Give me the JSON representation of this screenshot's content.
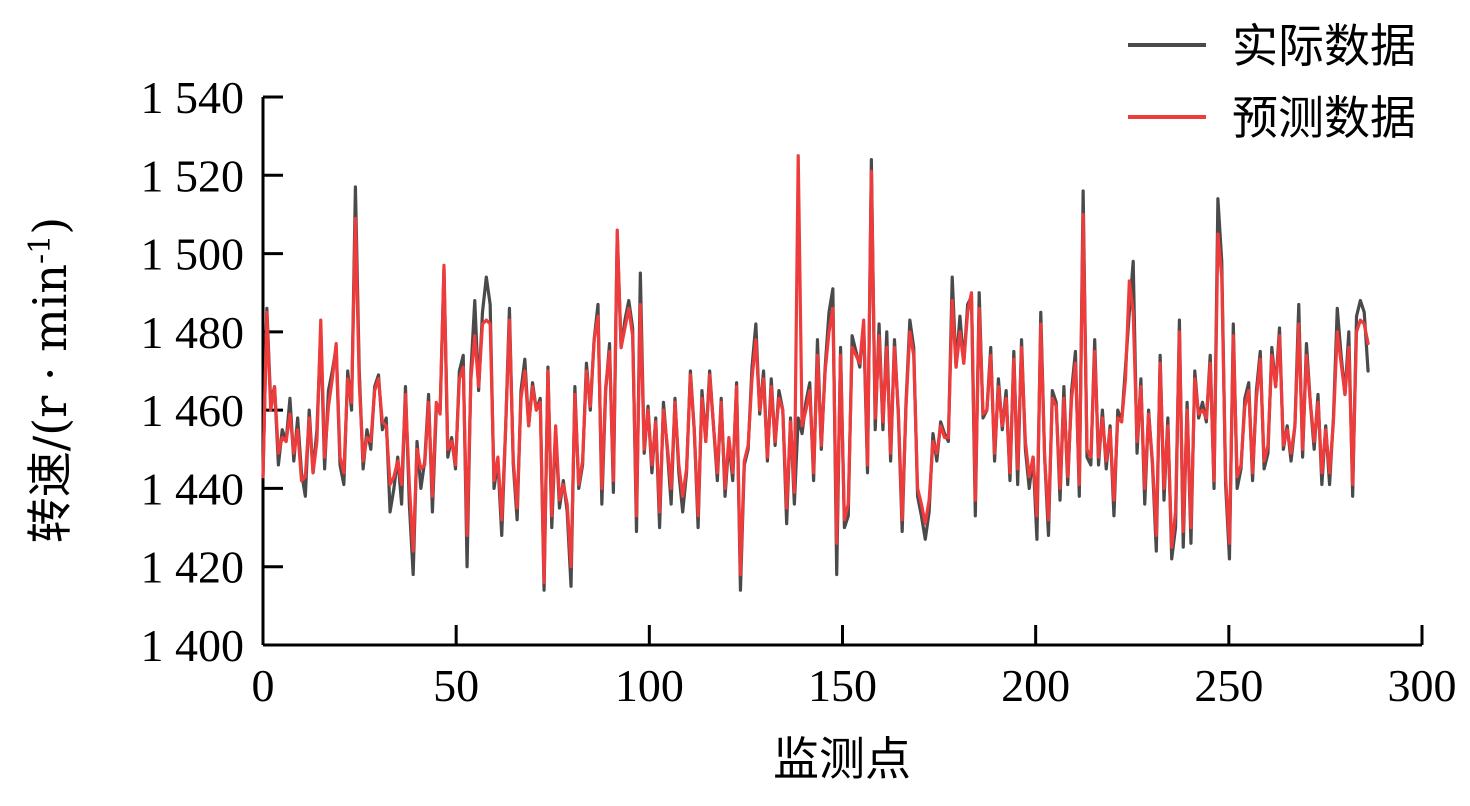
{
  "chart_data": {
    "type": "line",
    "title": "",
    "xlabel": "监测点",
    "ylabel": "转速/(r · min",
    "ylabel_sup": "-1",
    "ylabel_close": ")",
    "xlim": [
      0,
      300
    ],
    "ylim": [
      1400,
      1540
    ],
    "x_ticks": [
      0,
      50,
      100,
      150,
      200,
      250,
      300
    ],
    "y_ticks": [
      1400,
      1420,
      1440,
      1460,
      1480,
      1500,
      1520,
      1540
    ],
    "x_tick_labels": [
      "0",
      "50",
      "100",
      "150",
      "200",
      "250",
      "300"
    ],
    "y_tick_labels": [
      "1 400",
      "1 420",
      "1 440",
      "1 460",
      "1 480",
      "1 500",
      "1 520",
      "1 540"
    ],
    "grid": false,
    "legend_position": "top-right",
    "colors": {
      "actual": "#4a4a4a",
      "predicted": "#ee3b3b"
    },
    "series": [
      {
        "name": "实际数据",
        "color": "#4a4a4a",
        "values": [
          1443,
          1486,
          1462,
          1466,
          1446,
          1455,
          1452,
          1463,
          1447,
          1458,
          1444,
          1438,
          1460,
          1444,
          1455,
          1480,
          1445,
          1465,
          1470,
          1476,
          1446,
          1441,
          1470,
          1460,
          1517,
          1470,
          1445,
          1455,
          1450,
          1466,
          1469,
          1455,
          1458,
          1434,
          1440,
          1448,
          1436,
          1466,
          1436,
          1418,
          1452,
          1440,
          1447,
          1464,
          1434,
          1460,
          1460,
          1496,
          1448,
          1453,
          1445,
          1470,
          1474,
          1420,
          1470,
          1488,
          1465,
          1485,
          1494,
          1487,
          1440,
          1447,
          1428,
          1455,
          1486,
          1446,
          1432,
          1465,
          1473,
          1456,
          1467,
          1460,
          1463,
          1414,
          1471,
          1430,
          1455,
          1435,
          1442,
          1434,
          1415,
          1466,
          1440,
          1446,
          1472,
          1460,
          1478,
          1487,
          1436,
          1465,
          1477,
          1439,
          1505,
          1476,
          1483,
          1488,
          1481,
          1429,
          1495,
          1449,
          1461,
          1444,
          1458,
          1430,
          1462,
          1450,
          1436,
          1463,
          1444,
          1434,
          1444,
          1470,
          1455,
          1430,
          1465,
          1452,
          1470,
          1456,
          1442,
          1463,
          1438,
          1452,
          1442,
          1467,
          1414,
          1446,
          1450,
          1471,
          1482,
          1459,
          1470,
          1447,
          1468,
          1451,
          1465,
          1460,
          1431,
          1458,
          1436,
          1458,
          1454,
          1462,
          1467,
          1442,
          1478,
          1450,
          1471,
          1485,
          1491,
          1418,
          1476,
          1430,
          1433,
          1479,
          1475,
          1471,
          1482,
          1444,
          1524,
          1455,
          1482,
          1455,
          1480,
          1447,
          1478,
          1459,
          1429,
          1462,
          1483,
          1476,
          1438,
          1433,
          1427,
          1434,
          1454,
          1447,
          1457,
          1454,
          1452,
          1494,
          1471,
          1484,
          1472,
          1487,
          1489,
          1433,
          1490,
          1458,
          1460,
          1476,
          1447,
          1468,
          1455,
          1465,
          1442,
          1475,
          1441,
          1478,
          1450,
          1440,
          1448,
          1427,
          1485,
          1448,
          1428,
          1465,
          1462,
          1437,
          1466,
          1441,
          1465,
          1475,
          1438,
          1516,
          1448,
          1446,
          1478,
          1446,
          1460,
          1445,
          1456,
          1433,
          1460,
          1457,
          1471,
          1485,
          1498,
          1449,
          1468,
          1436,
          1460,
          1446,
          1424,
          1474,
          1437,
          1458,
          1422,
          1430,
          1483,
          1425,
          1462,
          1426,
          1470,
          1458,
          1462,
          1457,
          1474,
          1440,
          1514,
          1498,
          1441,
          1422,
          1482,
          1440,
          1445,
          1463,
          1467,
          1442,
          1465,
          1475,
          1445,
          1449,
          1476,
          1466,
          1481,
          1450,
          1456,
          1447,
          1456,
          1487,
          1448,
          1477,
          1462,
          1450,
          1464,
          1441,
          1456,
          1441,
          1458,
          1486,
          1474,
          1464,
          1480,
          1438,
          1484,
          1488,
          1485,
          1470
        ]
      },
      {
        "name": "预测数据",
        "color": "#ee3b3b",
        "values": [
          1443,
          1485,
          1460,
          1466,
          1449,
          1453,
          1452,
          1459,
          1449,
          1455,
          1442,
          1443,
          1458,
          1444,
          1452,
          1483,
          1448,
          1461,
          1468,
          1477,
          1448,
          1444,
          1468,
          1462,
          1509,
          1467,
          1447,
          1453,
          1452,
          1465,
          1468,
          1457,
          1456,
          1441,
          1443,
          1447,
          1441,
          1464,
          1441,
          1424,
          1450,
          1445,
          1446,
          1462,
          1438,
          1462,
          1459,
          1497,
          1450,
          1452,
          1446,
          1468,
          1471,
          1428,
          1468,
          1479,
          1466,
          1482,
          1483,
          1482,
          1442,
          1448,
          1432,
          1455,
          1483,
          1447,
          1435,
          1463,
          1470,
          1456,
          1466,
          1460,
          1462,
          1416,
          1470,
          1433,
          1456,
          1437,
          1441,
          1436,
          1420,
          1464,
          1441,
          1447,
          1470,
          1461,
          1478,
          1484,
          1440,
          1466,
          1475,
          1442,
          1506,
          1476,
          1481,
          1486,
          1479,
          1433,
          1487,
          1450,
          1460,
          1446,
          1457,
          1434,
          1460,
          1451,
          1440,
          1462,
          1446,
          1438,
          1445,
          1469,
          1455,
          1433,
          1463,
          1452,
          1469,
          1456,
          1444,
          1462,
          1440,
          1453,
          1444,
          1466,
          1418,
          1447,
          1451,
          1468,
          1478,
          1460,
          1468,
          1448,
          1466,
          1452,
          1463,
          1460,
          1435,
          1457,
          1439,
          1525,
          1456,
          1460,
          1465,
          1444,
          1474,
          1451,
          1470,
          1480,
          1486,
          1426,
          1474,
          1432,
          1436,
          1476,
          1474,
          1472,
          1483,
          1446,
          1521,
          1458,
          1479,
          1457,
          1476,
          1449,
          1476,
          1460,
          1432,
          1461,
          1480,
          1474,
          1440,
          1436,
          1431,
          1437,
          1452,
          1449,
          1456,
          1453,
          1453,
          1488,
          1471,
          1480,
          1472,
          1485,
          1490,
          1437,
          1486,
          1459,
          1460,
          1474,
          1449,
          1466,
          1456,
          1463,
          1444,
          1473,
          1445,
          1476,
          1452,
          1443,
          1448,
          1433,
          1482,
          1448,
          1432,
          1463,
          1461,
          1440,
          1463,
          1443,
          1463,
          1472,
          1441,
          1510,
          1450,
          1448,
          1475,
          1448,
          1458,
          1447,
          1455,
          1437,
          1458,
          1457,
          1468,
          1493,
          1485,
          1452,
          1466,
          1440,
          1459,
          1447,
          1428,
          1472,
          1440,
          1456,
          1425,
          1434,
          1480,
          1429,
          1460,
          1430,
          1468,
          1459,
          1460,
          1458,
          1472,
          1442,
          1505,
          1494,
          1443,
          1426,
          1479,
          1443,
          1446,
          1461,
          1465,
          1444,
          1463,
          1473,
          1447,
          1451,
          1474,
          1466,
          1479,
          1451,
          1455,
          1449,
          1456,
          1482,
          1450,
          1474,
          1462,
          1452,
          1462,
          1444,
          1455,
          1444,
          1457,
          1480,
          1472,
          1464,
          1476,
          1441,
          1480,
          1483,
          1482,
          1477
        ]
      }
    ]
  }
}
